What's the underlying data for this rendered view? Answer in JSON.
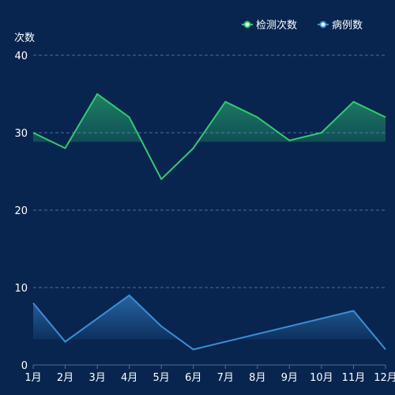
{
  "chart_data": {
    "type": "line",
    "title": "",
    "xlabel": "",
    "ylabel": "次数",
    "ylim": [
      0,
      40
    ],
    "yticks": [
      0,
      10,
      20,
      30,
      40
    ],
    "grid": true,
    "legend": "top-right",
    "categories": [
      "1月",
      "2月",
      "3月",
      "4月",
      "5月",
      "6月",
      "7月",
      "8月",
      "9月",
      "10月",
      "11月",
      "12月"
    ],
    "series": [
      {
        "name": "检测次数",
        "color": "#2ecc71",
        "area": true,
        "values": [
          30,
          28,
          35,
          32,
          24,
          28,
          34,
          32,
          29,
          30,
          34,
          32
        ]
      },
      {
        "name": "病例数",
        "color": "#3a8fd8",
        "area": true,
        "values": [
          8,
          3,
          null,
          9,
          5,
          2,
          null,
          null,
          null,
          null,
          7,
          2
        ]
      }
    ]
  }
}
